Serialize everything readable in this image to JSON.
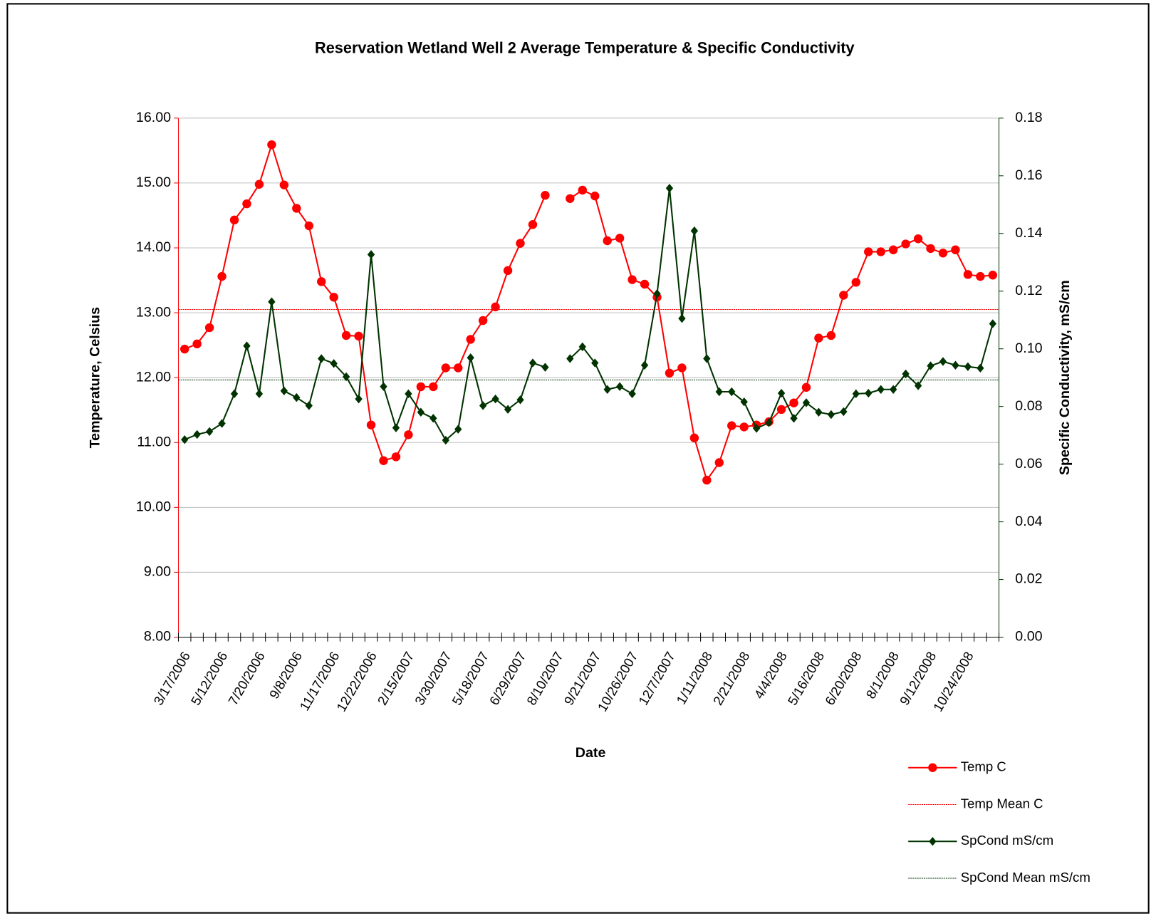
{
  "chart_data": {
    "type": "line",
    "title": "Reservation Wetland Well 2 Average Temperature & Specific Conductivity",
    "x_label": "Date",
    "y_label": "Temperature, Celsius",
    "y2_label": "Specific Conductivity, mS/cm",
    "categories": [
      "3/17/2006",
      null,
      null,
      "5/12/2006",
      null,
      null,
      "7/20/2006",
      null,
      null,
      "9/8/2006",
      null,
      null,
      "11/17/2006",
      null,
      null,
      "12/22/2006",
      null,
      null,
      "2/15/2007",
      null,
      null,
      "3/30/2007",
      null,
      null,
      "5/18/2007",
      null,
      null,
      "6/29/2007",
      null,
      null,
      "8/10/2007",
      null,
      null,
      "9/21/2007",
      null,
      null,
      "10/26/2007",
      null,
      null,
      "12/7/2007",
      null,
      null,
      "1/11/2008",
      null,
      null,
      "2/21/2008",
      null,
      null,
      "4/4/2008",
      null,
      null,
      "5/16/2008",
      null,
      null,
      "6/20/2008",
      null,
      null,
      "8/1/2008",
      null,
      null,
      "9/12/2008",
      null,
      null,
      "10/24/2008",
      null,
      null
    ],
    "series": [
      {
        "name": "Temp C",
        "color": "#ff0000",
        "marker": "circle",
        "axis": "y",
        "values": [
          12.44,
          12.52,
          12.77,
          13.56,
          14.43,
          14.68,
          14.98,
          15.59,
          14.97,
          14.61,
          14.34,
          13.48,
          13.24,
          12.65,
          12.64,
          11.27,
          10.72,
          10.78,
          11.12,
          11.86,
          11.86,
          12.15,
          12.15,
          12.59,
          12.88,
          13.09,
          13.65,
          14.07,
          14.36,
          14.81,
          null,
          14.76,
          14.89,
          14.8,
          14.11,
          14.15,
          13.51,
          13.44,
          13.24,
          12.07,
          12.15,
          11.07,
          10.42,
          10.69,
          11.26,
          11.24,
          11.27,
          11.32,
          11.51,
          11.61,
          11.85,
          12.61,
          12.65,
          13.27,
          13.47,
          13.94,
          13.94,
          13.97,
          14.06,
          14.14,
          13.99,
          13.92,
          13.97,
          13.59,
          13.56,
          13.58
        ]
      },
      {
        "name": "Temp Mean C",
        "color": "#ff0000",
        "dashed": true,
        "axis": "y",
        "mean": 13.05
      },
      {
        "name": "SpCond mS/cm",
        "color": "#003300",
        "marker": "diamond",
        "axis": "y2",
        "values": [
          0.0685,
          0.0703,
          0.0713,
          0.0741,
          0.0844,
          0.101,
          0.0844,
          0.1163,
          0.0854,
          0.0831,
          0.0803,
          0.0966,
          0.0949,
          0.0903,
          0.0826,
          0.1327,
          0.0869,
          0.0726,
          0.0844,
          0.078,
          0.0759,
          0.0683,
          0.0721,
          0.0969,
          0.0803,
          0.0826,
          0.079,
          0.0823,
          0.0951,
          0.0936,
          null,
          0.0966,
          0.1007,
          0.0951,
          0.0859,
          0.0869,
          0.0844,
          0.0943,
          0.1191,
          0.1557,
          0.1105,
          0.1409,
          0.0966,
          0.0851,
          0.0851,
          0.0816,
          0.0724,
          0.0744,
          0.0846,
          0.0759,
          0.0813,
          0.078,
          0.0772,
          0.0782,
          0.0844,
          0.0846,
          0.0859,
          0.0859,
          0.0913,
          0.0872,
          0.0941,
          0.0956,
          0.0943,
          0.0938,
          0.0933,
          0.1087
        ]
      },
      {
        "name": "SpCond Mean mS/cm",
        "color": "#003300",
        "dashed": true,
        "axis": "y2",
        "mean": 0.0892
      }
    ],
    "ylim": [
      8,
      16
    ],
    "yticks": [
      {
        "value": 8,
        "label": "8.00"
      },
      {
        "value": 9,
        "label": "9.00"
      },
      {
        "value": 10,
        "label": "10.00"
      },
      {
        "value": 11,
        "label": "11.00"
      },
      {
        "value": 12,
        "label": "12.00"
      },
      {
        "value": 13,
        "label": "13.00"
      },
      {
        "value": 14,
        "label": "14.00"
      },
      {
        "value": 15,
        "label": "15.00"
      },
      {
        "value": 16,
        "label": "16.00"
      }
    ],
    "y2lim": [
      0,
      0.18
    ],
    "y2ticks": [
      {
        "value": 0,
        "label": "0.00"
      },
      {
        "value": 0.02,
        "label": "0.02"
      },
      {
        "value": 0.04,
        "label": "0.04"
      },
      {
        "value": 0.06,
        "label": "0.06"
      },
      {
        "value": 0.08,
        "label": "0.08"
      },
      {
        "value": 0.1,
        "label": "0.10"
      },
      {
        "value": 0.12,
        "label": "0.12"
      },
      {
        "value": 0.14,
        "label": "0.14"
      },
      {
        "value": 0.16,
        "label": "0.16"
      },
      {
        "value": 0.18,
        "label": "0.18"
      }
    ],
    "y_axis_color": "#ff0000",
    "y2_axis_color": "#003300",
    "grid": true,
    "legend": "bottom-right"
  }
}
